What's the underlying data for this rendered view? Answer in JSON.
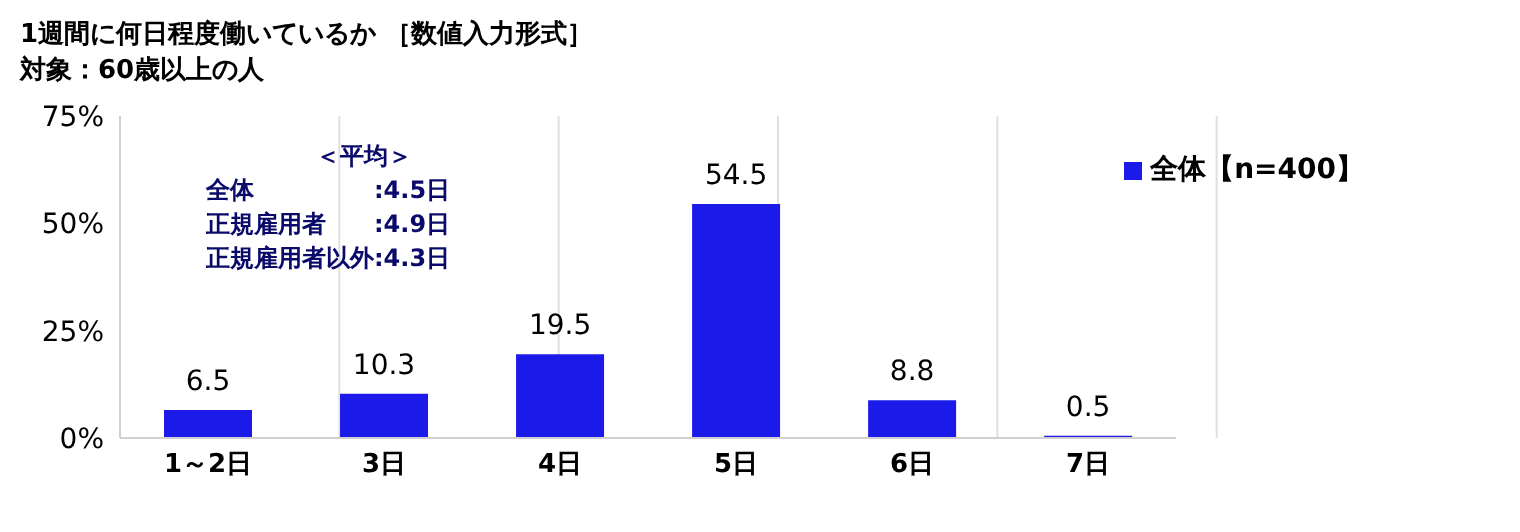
{
  "chart_data": {
    "type": "bar",
    "title": "1週間に何日程度働いているか ［数値入力形式］",
    "subtitle": "対象：60歳以上の人",
    "categories": [
      "1～2日",
      "3日",
      "4日",
      "5日",
      "6日",
      "7日"
    ],
    "series": [
      {
        "name": "全体【n=400】",
        "color": "#1c1ae8",
        "values": [
          6.5,
          10.3,
          19.5,
          54.5,
          8.8,
          0.5
        ]
      }
    ],
    "ylim": [
      0,
      75
    ],
    "yticks": [
      {
        "value": 0,
        "label": "0%"
      },
      {
        "value": 25,
        "label": "25%"
      },
      {
        "value": 50,
        "label": "50%"
      },
      {
        "value": 75,
        "label": "75%"
      }
    ],
    "grid": "x",
    "legend": "top right",
    "data_labels": true,
    "annotations": [
      "＜平均＞",
      "全体　　　　　:4.5日",
      "正規雇用者　　:4.9日",
      "正規雇用者以外:4.3日"
    ]
  }
}
